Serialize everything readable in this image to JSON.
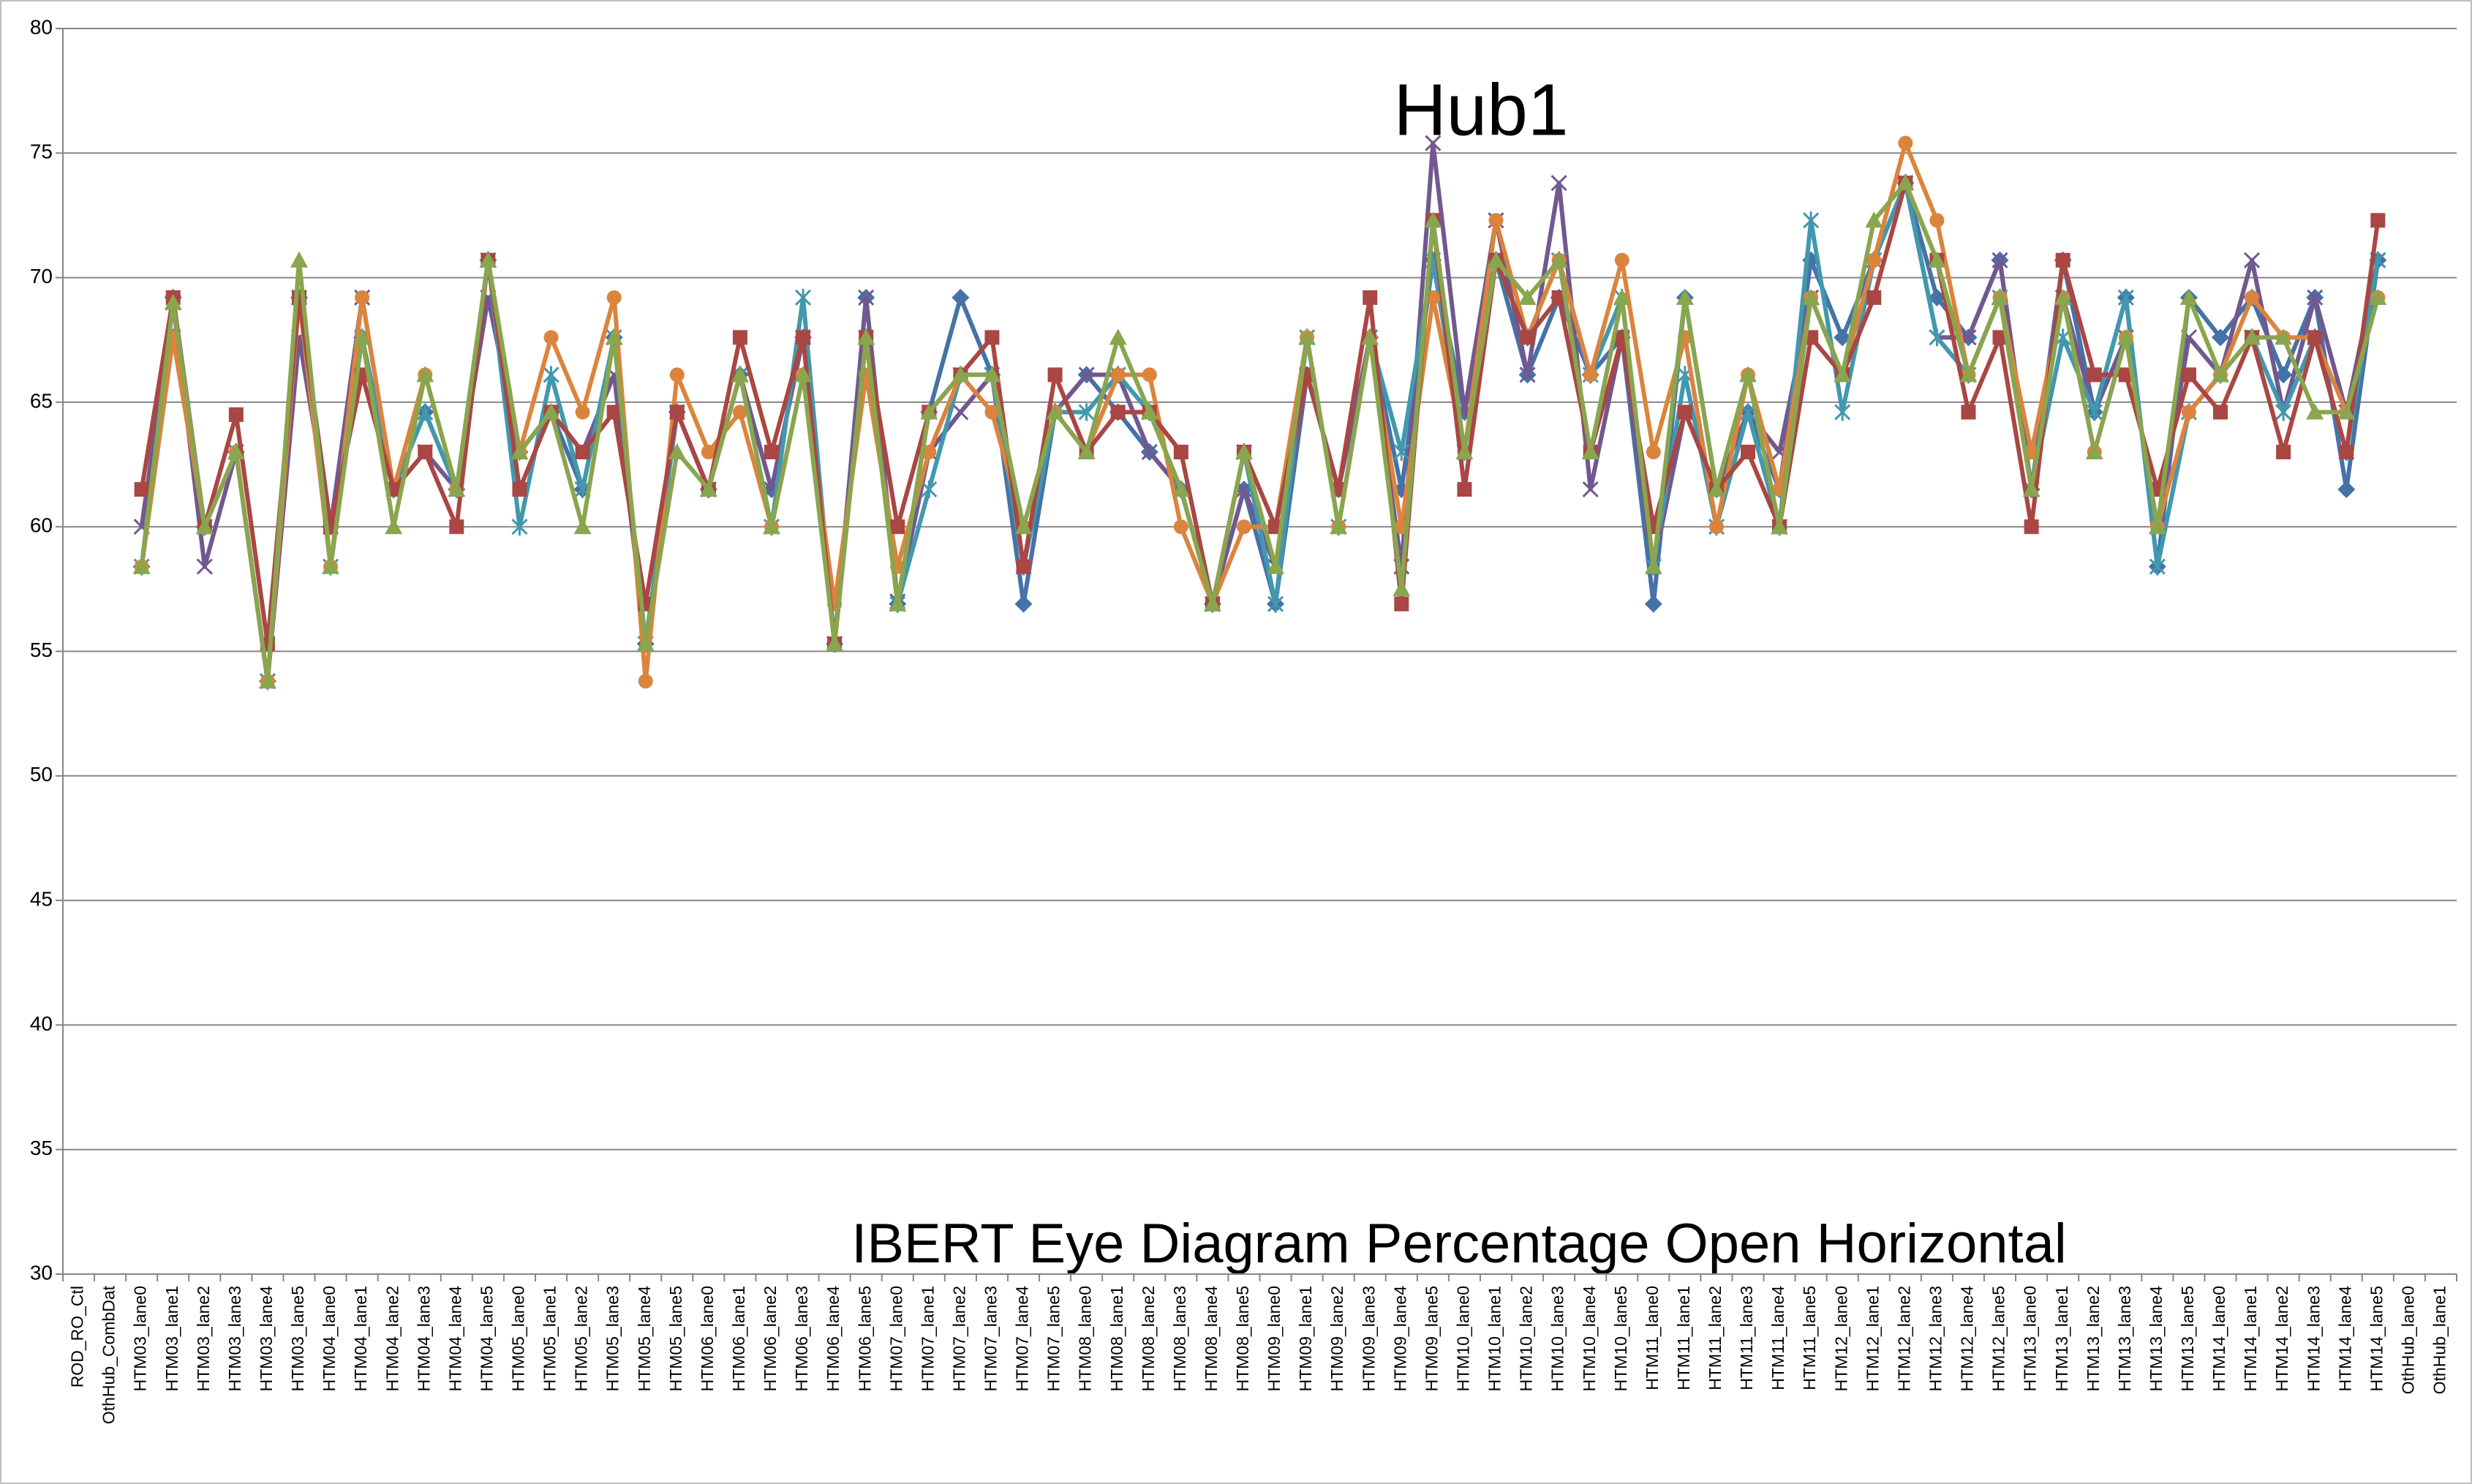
{
  "chart_data": {
    "type": "line",
    "title": "Hub1",
    "subtitle": "IBERT Eye Diagram Percentage Open Horizontal",
    "categories": [
      "ROD_RO_Ctl",
      "OthHub_CombDat",
      "HTM03_lane0",
      "HTM03_lane1",
      "HTM03_lane2",
      "HTM03_lane3",
      "HTM03_lane4",
      "HTM03_lane5",
      "HTM04_lane0",
      "HTM04_lane1",
      "HTM04_lane2",
      "HTM04_lane3",
      "HTM04_lane4",
      "HTM04_lane5",
      "HTM05_lane0",
      "HTM05_lane1",
      "HTM05_lane2",
      "HTM05_lane3",
      "HTM05_lane4",
      "HTM05_lane5",
      "HTM06_lane0",
      "HTM06_lane1",
      "HTM06_lane2",
      "HTM06_lane3",
      "HTM06_lane4",
      "HTM06_lane5",
      "HTM07_lane0",
      "HTM07_lane1",
      "HTM07_lane2",
      "HTM07_lane3",
      "HTM07_lane4",
      "HTM07_lane5",
      "HTM08_lane0",
      "HTM08_lane1",
      "HTM08_lane2",
      "HTM08_lane3",
      "HTM08_lane4",
      "HTM08_lane5",
      "HTM09_lane0",
      "HTM09_lane1",
      "HTM09_lane2",
      "HTM09_lane3",
      "HTM09_lane4",
      "HTM09_lane5",
      "HTM10_lane0",
      "HTM10_lane1",
      "HTM10_lane2",
      "HTM10_lane3",
      "HTM10_lane4",
      "HTM10_lane5",
      "HTM11_lane0",
      "HTM11_lane1",
      "HTM11_lane2",
      "HTM11_lane3",
      "HTM11_lane4",
      "HTM11_lane5",
      "HTM12_lane0",
      "HTM12_lane1",
      "HTM12_lane2",
      "HTM12_lane3",
      "HTM12_lane4",
      "HTM12_lane5",
      "HTM13_lane0",
      "HTM13_lane1",
      "HTM13_lane2",
      "HTM13_lane3",
      "HTM13_lane4",
      "HTM13_lane5",
      "HTM14_lane0",
      "HTM14_lane1",
      "HTM14_lane2",
      "HTM14_lane3",
      "HTM14_lane4",
      "HTM14_lane5",
      "OthHub_lane0",
      "OthHub_lane1"
    ],
    "series": [
      {
        "color": "#4572a7",
        "marker": "diamond",
        "values": [
          null,
          null,
          58.4,
          69.2,
          60,
          63,
          53.8,
          69.2,
          60,
          67.6,
          61.5,
          64.6,
          61.5,
          70.7,
          63,
          64.6,
          61.5,
          67.6,
          55.3,
          64.6,
          61.5,
          66.1,
          61.5,
          67.6,
          55.3,
          69.2,
          56.9,
          64.6,
          69.2,
          66.1,
          56.9,
          64.6,
          66.1,
          64.6,
          63,
          61.5,
          56.9,
          61.5,
          56.9,
          66.1,
          61.5,
          67.6,
          61.5,
          70.7,
          64.6,
          70.7,
          66.1,
          69.2,
          66.1,
          67.6,
          56.9,
          69.2,
          61.5,
          64.6,
          61.5,
          70.7,
          67.6,
          70.7,
          73.8,
          69.2,
          67.6,
          70.7,
          61.5,
          70.7,
          64.6,
          69.2,
          58.4,
          69.2,
          67.6,
          69.2,
          66.1,
          69.2,
          61.5,
          70.7,
          null,
          null
        ]
      },
      {
        "color": "#71588f",
        "marker": "x",
        "values": [
          null,
          null,
          60,
          69,
          58.4,
          63,
          53.8,
          67.6,
          60,
          69.2,
          61.5,
          63,
          61.5,
          69.2,
          63,
          64.6,
          63,
          66.1,
          55.3,
          64.6,
          61.5,
          66.1,
          61.5,
          67.6,
          55.3,
          69.2,
          57,
          63,
          64.6,
          66.1,
          58.4,
          64.6,
          66.1,
          66.1,
          63,
          61.5,
          56.9,
          61.5,
          58.4,
          66.1,
          61.5,
          67.6,
          58.4,
          75.4,
          64.6,
          72.3,
          66.1,
          73.8,
          61.5,
          67.6,
          58.4,
          64.6,
          61.5,
          64.6,
          63,
          69.2,
          66.1,
          70.7,
          73.8,
          67.6,
          67.6,
          70.7,
          61.5,
          69.2,
          64.6,
          67.6,
          60,
          67.6,
          66.1,
          70.7,
          64.6,
          69.2,
          64.6,
          70.7,
          null,
          null
        ]
      },
      {
        "color": "#4198af",
        "marker": "star",
        "values": [
          null,
          null,
          58.4,
          67.6,
          60,
          63,
          53.8,
          69.2,
          58.4,
          67.6,
          61.5,
          64.6,
          61.5,
          70.7,
          60,
          66.1,
          61.5,
          67.6,
          55.3,
          64.6,
          61.5,
          66.1,
          60,
          69.2,
          55.3,
          67.6,
          56.9,
          61.5,
          66.1,
          66.1,
          58.4,
          64.6,
          64.6,
          66.1,
          64.6,
          61.5,
          56.9,
          63,
          56.9,
          67.6,
          60,
          67.6,
          63,
          70.7,
          63,
          70.7,
          67.6,
          70.7,
          66.1,
          69.2,
          58.4,
          66.1,
          60,
          64.6,
          60,
          72.3,
          64.6,
          70.7,
          73.8,
          67.6,
          66.1,
          69.2,
          61.5,
          67.6,
          64.6,
          69.2,
          58.4,
          64.6,
          66.1,
          67.6,
          64.6,
          67.6,
          63,
          70.7,
          null,
          null
        ]
      },
      {
        "color": "#db843d",
        "marker": "circle",
        "values": [
          null,
          null,
          58.4,
          67.6,
          60,
          63,
          53.8,
          69.2,
          58.4,
          69.2,
          61.5,
          66.1,
          61.5,
          70.7,
          63,
          67.6,
          64.6,
          69.2,
          53.8,
          66.1,
          63,
          64.6,
          60,
          66.1,
          56.9,
          66.1,
          58.4,
          63,
          66.1,
          64.6,
          60,
          64.6,
          63,
          66.1,
          66.1,
          60,
          56.9,
          60,
          60,
          67.6,
          60,
          67.6,
          60,
          69.2,
          63,
          72.3,
          67.6,
          70.7,
          66.1,
          70.7,
          63,
          67.6,
          60,
          66.1,
          61.5,
          69.2,
          66.1,
          70.7,
          75.4,
          72.3,
          66.1,
          69.2,
          63,
          69.2,
          63,
          67.6,
          60,
          64.6,
          66.1,
          69.2,
          67.6,
          67.6,
          64.6,
          69.2,
          null,
          null
        ]
      },
      {
        "color": "#aa4643",
        "marker": "square",
        "values": [
          null,
          null,
          61.5,
          69.2,
          60,
          64.5,
          55.3,
          69.2,
          60,
          66.1,
          61.5,
          63,
          60,
          70.7,
          61.5,
          64.6,
          63,
          64.6,
          56.9,
          64.6,
          61.5,
          67.6,
          63,
          67.6,
          55.3,
          67.6,
          60,
          64.6,
          66.1,
          67.6,
          58.4,
          66.1,
          63,
          64.6,
          64.6,
          63,
          56.9,
          63,
          60,
          66.1,
          61.5,
          69.2,
          56.9,
          72.3,
          61.5,
          70.7,
          67.6,
          69.2,
          63,
          67.6,
          60,
          64.6,
          61.5,
          63,
          60,
          67.6,
          66.1,
          69.2,
          73.8,
          70.7,
          64.6,
          67.6,
          60,
          70.7,
          66.1,
          66.1,
          61.5,
          66.1,
          64.6,
          67.6,
          63,
          67.6,
          63,
          72.3,
          null,
          null
        ]
      },
      {
        "color": "#89a54e",
        "marker": "triangle",
        "values": [
          null,
          null,
          58.4,
          69,
          60,
          63,
          53.8,
          70.7,
          58.4,
          67.6,
          60,
          66.1,
          61.5,
          70.7,
          63,
          64.6,
          60,
          67.6,
          55.3,
          63,
          61.5,
          66.1,
          60,
          66.1,
          55.3,
          67.6,
          56.9,
          64.6,
          66.1,
          66.1,
          60,
          64.6,
          63,
          67.6,
          64.6,
          61.5,
          56.9,
          63,
          58.4,
          67.6,
          60,
          67.6,
          57.5,
          72.3,
          63,
          70.7,
          69.2,
          70.7,
          63,
          69.2,
          58.4,
          69.2,
          61.5,
          66.1,
          60,
          69.2,
          66.1,
          72.3,
          73.8,
          70.7,
          66.1,
          69.2,
          61.5,
          69.2,
          63,
          67.6,
          60,
          69.2,
          66.1,
          67.6,
          67.6,
          64.6,
          64.6,
          69.2,
          null,
          null
        ]
      }
    ],
    "ylim": [
      30,
      80
    ],
    "yticks": [
      30,
      35,
      40,
      45,
      50,
      55,
      60,
      65,
      70,
      75,
      80
    ],
    "grid": true
  }
}
